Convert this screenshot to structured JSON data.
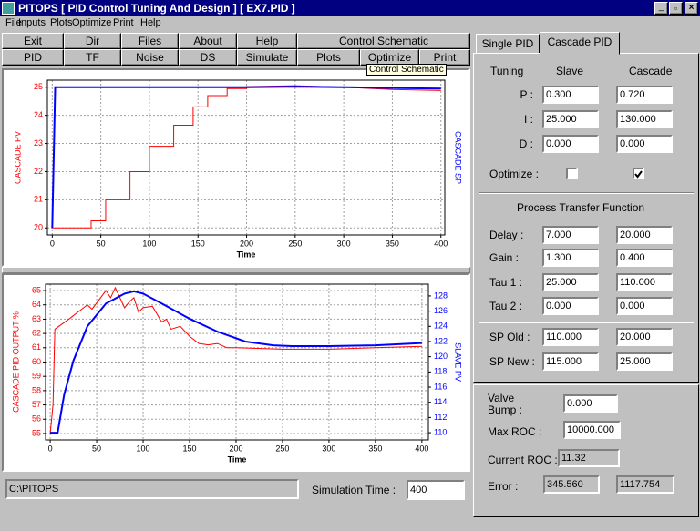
{
  "window": {
    "title": "PITOPS [ PID Control Tuning And Design ]   [ EX7.PID ]"
  },
  "menu": [
    "File",
    "Inputs",
    "Plots",
    "Optimize",
    "Print",
    "Help"
  ],
  "toolbar": {
    "row1": [
      "Exit",
      "Dir",
      "Files",
      "About",
      "Help",
      "Control Schematic"
    ],
    "row2": [
      "PID",
      "TF",
      "Noise",
      "DS",
      "Simulate",
      "Plots",
      "Optimize",
      "Print"
    ]
  },
  "tooltip": "Control Schematic",
  "chart_data": [
    {
      "type": "line",
      "x_label": "Time",
      "y_label": "CASCADE PV",
      "y2_label": "CASCADE SP",
      "xlim": [
        -5,
        404
      ],
      "xticks": [
        0,
        50,
        100,
        150,
        200,
        250,
        300,
        350,
        400
      ],
      "ylim": [
        19.75,
        25.25
      ],
      "yticks": [
        20,
        21,
        22,
        23,
        24,
        25
      ],
      "grid": true,
      "series": [
        {
          "color": "#ff0000",
          "x": [
            0,
            40,
            40,
            55,
            55,
            80,
            80,
            100,
            100,
            125,
            125,
            145,
            145,
            160,
            160,
            180,
            180,
            200,
            200,
            250,
            300,
            350,
            400
          ],
          "values": [
            20,
            20,
            20.25,
            20.25,
            21,
            21,
            22,
            22,
            22.9,
            22.9,
            23.65,
            23.65,
            24.3,
            24.3,
            24.7,
            24.7,
            24.95,
            24.95,
            25.02,
            25.05,
            25.0,
            24.92,
            24.88
          ]
        },
        {
          "color": "#0000ff",
          "x": [
            0,
            3,
            200,
            250,
            300,
            350,
            400
          ],
          "values": [
            20,
            25,
            25,
            25.02,
            25,
            24.97,
            24.95
          ]
        }
      ]
    },
    {
      "type": "line",
      "x_label": "Time",
      "y_label": "CASCADE PID OUTPUT %",
      "y2_label": "SLAVE PV",
      "xlim": [
        -5,
        407
      ],
      "xticks": [
        0,
        50,
        100,
        150,
        200,
        250,
        300,
        350,
        400
      ],
      "ylim": [
        54.55,
        65.45
      ],
      "yticks": [
        55,
        56,
        57,
        58,
        59,
        60,
        61,
        62,
        63,
        64,
        65
      ],
      "y2lim": [
        109.05,
        129.55
      ],
      "y2ticks": [
        110,
        112,
        114,
        116,
        118,
        120,
        122,
        124,
        126,
        128
      ],
      "grid": true,
      "series": [
        {
          "color": "#ff0000",
          "x": [
            0,
            3,
            5,
            20,
            40,
            45,
            60,
            65,
            70,
            80,
            85,
            90,
            95,
            100,
            110,
            120,
            125,
            130,
            140,
            150,
            160,
            170,
            180,
            190,
            200,
            250,
            300,
            350,
            400
          ],
          "values": [
            55,
            57,
            62.3,
            63,
            64,
            63.7,
            65,
            64.5,
            65.2,
            63.8,
            64.2,
            64.5,
            63.5,
            63.8,
            63.9,
            62.8,
            63.0,
            62.3,
            62.5,
            61.8,
            61.3,
            61.2,
            61.3,
            61.0,
            61.0,
            60.9,
            60.9,
            61.0,
            61.1
          ]
        },
        {
          "color": "#0000ff",
          "axis": "y2",
          "x": [
            0,
            8,
            15,
            25,
            40,
            60,
            80,
            90,
            100,
            120,
            150,
            180,
            210,
            240,
            260,
            300,
            350,
            400
          ],
          "values": [
            110,
            110,
            115,
            119.5,
            124,
            127,
            128.3,
            128.6,
            128.3,
            127,
            125,
            123.3,
            122,
            121.5,
            121.4,
            121.4,
            121.5,
            121.8
          ]
        }
      ]
    }
  ],
  "status": {
    "path": "C:\\PITOPS",
    "simulation_time_label": "Simulation Time :",
    "simulation_time": "400"
  },
  "tabs": [
    "Single PID",
    "Cascade PID"
  ],
  "tuning": {
    "headers": [
      "Tuning",
      "Slave",
      "Cascade"
    ],
    "rows": [
      {
        "label": "P :",
        "slave": "0.300",
        "cascade": "0.720"
      },
      {
        "label": "I :",
        "slave": "25.000",
        "cascade": "130.000"
      },
      {
        "label": "D :",
        "slave": "0.000",
        "cascade": "0.000"
      }
    ],
    "optimize": {
      "label": "Optimize :",
      "slave": false,
      "cascade": true
    }
  },
  "transfer_function": {
    "title": "Process Transfer Function",
    "rows": [
      {
        "label": "Delay :",
        "slave": "7.000",
        "cascade": "20.000"
      },
      {
        "label": "Gain :",
        "slave": "1.300",
        "cascade": "0.400"
      },
      {
        "label": "Tau 1 :",
        "slave": "25.000",
        "cascade": "110.000"
      },
      {
        "label": "Tau 2 :",
        "slave": "0.000",
        "cascade": "0.000"
      }
    ]
  },
  "setpoints": {
    "rows": [
      {
        "label": "SP Old :",
        "slave": "110.000",
        "cascade": "20.000"
      },
      {
        "label": "SP New :",
        "slave": "115.000",
        "cascade": "25.000"
      }
    ]
  },
  "rate": {
    "valve_bump_label": "Valve Bump :",
    "valve_bump": "0.000",
    "max_roc_label": "Max ROC :",
    "max_roc": "10000.000",
    "current_roc_label": "Current ROC :",
    "current_roc": "11.32",
    "error_label": "Error :",
    "error": [
      "345.560",
      "1117.754"
    ]
  }
}
